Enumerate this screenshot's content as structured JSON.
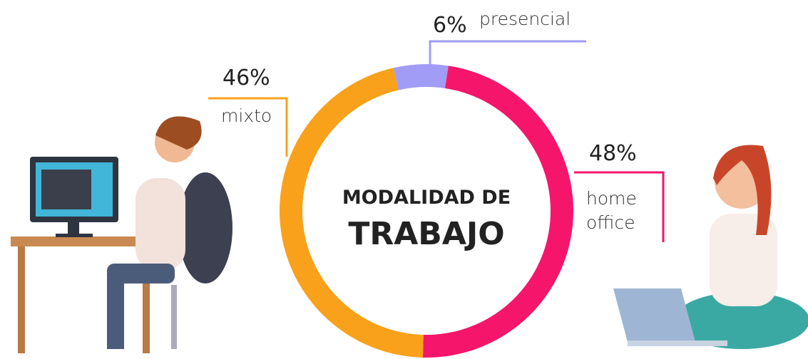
{
  "chart_data": {
    "type": "pie",
    "title": [
      "MODALIDAD DE",
      "TRABAJO"
    ],
    "categories": [
      "presencial",
      "home office",
      "mixto"
    ],
    "values": [
      6,
      48,
      46
    ],
    "value_labels": [
      "6%",
      "48%",
      "46%"
    ],
    "colors": [
      "#a19cf6",
      "#f5166b",
      "#f9a11b"
    ],
    "donut": true
  }
}
